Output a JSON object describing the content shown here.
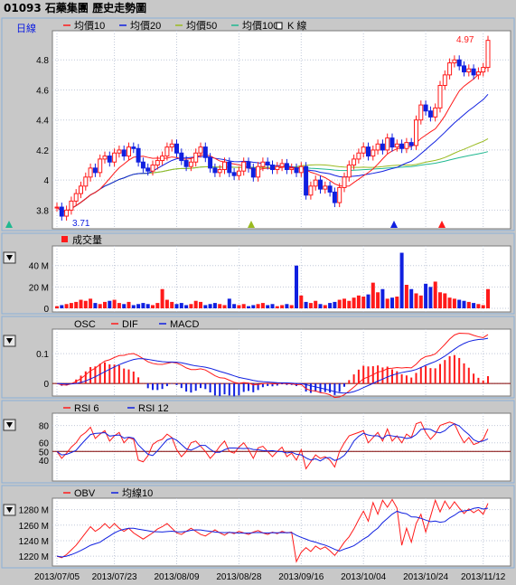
{
  "header": {
    "title": "01093 石藥集團  歷史走勢圖"
  },
  "colors": {
    "red": "#ff1a1a",
    "blue": "#1020e0",
    "olive": "#9aba20",
    "teal": "#20b890",
    "panel": "#c8c8c8",
    "border": "#8ab0d8"
  },
  "panels": {
    "price": {
      "period_label": "日線",
      "legend": [
        "均價10",
        "均價20",
        "均價50",
        "均價100",
        "K 線"
      ],
      "y_ticks": [
        "4.8",
        "4.6",
        "4.4",
        "4.2",
        "4",
        "3.8"
      ],
      "high_label": "4.97",
      "low_label": "3.71"
    },
    "volume": {
      "legend": [
        "成交量"
      ],
      "y_ticks": [
        "40 M",
        "20 M",
        "0"
      ]
    },
    "macd": {
      "legend": [
        "OSC",
        "DIF",
        "MACD"
      ],
      "y_ticks": [
        "0.1",
        "0"
      ]
    },
    "rsi": {
      "legend": [
        "RSI 6",
        "RSI 12"
      ],
      "y_ticks": [
        "80",
        "60",
        "50",
        "40"
      ]
    },
    "obv": {
      "legend": [
        "OBV",
        "均線10"
      ],
      "y_ticks": [
        "1280 M",
        "1260 M",
        "1240 M",
        "1220 M"
      ]
    }
  },
  "x_axis": {
    "labels": [
      "2013/07/05",
      "2013/07/23",
      "2013/08/09",
      "2013/08/28",
      "2013/09/16",
      "2013/10/04",
      "2013/10/24",
      "2013/11/12"
    ]
  },
  "chart_data": {
    "type": "candlestick",
    "n": 91,
    "close": [
      3.82,
      3.76,
      3.8,
      3.86,
      3.91,
      3.96,
      4.02,
      4.08,
      4.05,
      4.14,
      4.16,
      4.12,
      4.18,
      4.2,
      4.16,
      4.22,
      4.21,
      4.12,
      4.08,
      4.06,
      4.1,
      4.13,
      4.16,
      4.22,
      4.24,
      4.18,
      4.13,
      4.09,
      4.12,
      4.18,
      4.22,
      4.15,
      4.08,
      4.05,
      4.07,
      4.12,
      4.05,
      4.03,
      4.06,
      4.12,
      4.08,
      4.02,
      4.09,
      4.12,
      4.1,
      4.07,
      4.09,
      4.11,
      4.07,
      4.08,
      4.05,
      4.09,
      3.9,
      3.96,
      4.0,
      3.94,
      3.96,
      3.92,
      3.85,
      3.95,
      4.02,
      4.1,
      4.14,
      4.18,
      4.22,
      4.16,
      4.2,
      4.24,
      4.2,
      4.28,
      4.22,
      4.24,
      4.21,
      4.25,
      4.23,
      4.4,
      4.5,
      4.46,
      4.42,
      4.48,
      4.63,
      4.7,
      4.78,
      4.8,
      4.76,
      4.72,
      4.74,
      4.7,
      4.72,
      4.75,
      4.93
    ],
    "volume_millions": [
      2,
      3,
      4,
      5,
      6,
      8,
      7,
      9,
      5,
      4,
      6,
      7,
      8,
      5,
      4,
      6,
      3,
      4,
      5,
      4,
      3,
      5,
      18,
      8,
      6,
      4,
      5,
      3,
      4,
      7,
      6,
      3,
      4,
      5,
      4,
      3,
      9,
      4,
      3,
      4,
      2,
      3,
      4,
      5,
      3,
      4,
      2,
      3,
      4,
      3,
      40,
      12,
      6,
      5,
      7,
      4,
      3,
      5,
      6,
      8,
      9,
      7,
      10,
      12,
      11,
      13,
      24,
      15,
      18,
      9,
      10,
      11,
      52,
      22,
      18,
      14,
      12,
      23,
      20,
      25,
      15,
      14,
      10,
      9,
      8,
      7,
      6,
      5,
      4,
      3,
      18
    ],
    "rsi6": [
      50,
      42,
      48,
      55,
      60,
      68,
      72,
      78,
      65,
      70,
      74,
      62,
      68,
      72,
      60,
      66,
      64,
      40,
      38,
      45,
      58,
      62,
      64,
      70,
      66,
      52,
      44,
      50,
      60,
      62,
      56,
      50,
      42,
      48,
      56,
      62,
      50,
      48,
      55,
      60,
      52,
      42,
      54,
      56,
      50,
      44,
      50,
      55,
      44,
      48,
      40,
      52,
      30,
      38,
      46,
      42,
      44,
      40,
      32,
      50,
      60,
      68,
      70,
      72,
      74,
      60,
      66,
      72,
      62,
      76,
      62,
      68,
      60,
      70,
      66,
      82,
      84,
      72,
      64,
      70,
      80,
      82,
      84,
      82,
      70,
      60,
      66,
      58,
      60,
      64,
      76
    ],
    "obv_millions": [
      1220,
      1218,
      1222,
      1228,
      1234,
      1242,
      1250,
      1258,
      1252,
      1256,
      1262,
      1256,
      1262,
      1256,
      1252,
      1256,
      1250,
      1246,
      1242,
      1246,
      1250,
      1255,
      1258,
      1262,
      1256,
      1250,
      1248,
      1252,
      1256,
      1252,
      1248,
      1246,
      1250,
      1254,
      1250,
      1247,
      1251,
      1249,
      1252,
      1250,
      1248,
      1251,
      1253,
      1250,
      1248,
      1251,
      1249,
      1252,
      1250,
      1251,
      1213,
      1225,
      1231,
      1226,
      1233,
      1229,
      1232,
      1227,
      1221,
      1229,
      1238,
      1245,
      1255,
      1267,
      1278,
      1265,
      1289,
      1274,
      1292,
      1283,
      1293,
      1282,
      1234,
      1256,
      1238,
      1262,
      1274,
      1251,
      1271,
      1292,
      1277,
      1291,
      1281,
      1290,
      1282,
      1275,
      1281,
      1276,
      1280,
      1274,
      1288
    ],
    "ylim_price": [
      3.7,
      4.97
    ],
    "ylim_volume": [
      0,
      55
    ],
    "ylim_macd": [
      -0.03,
      0.17
    ],
    "ylim_rsi": [
      20,
      90
    ],
    "ylim_obv": [
      1212,
      1290
    ]
  }
}
